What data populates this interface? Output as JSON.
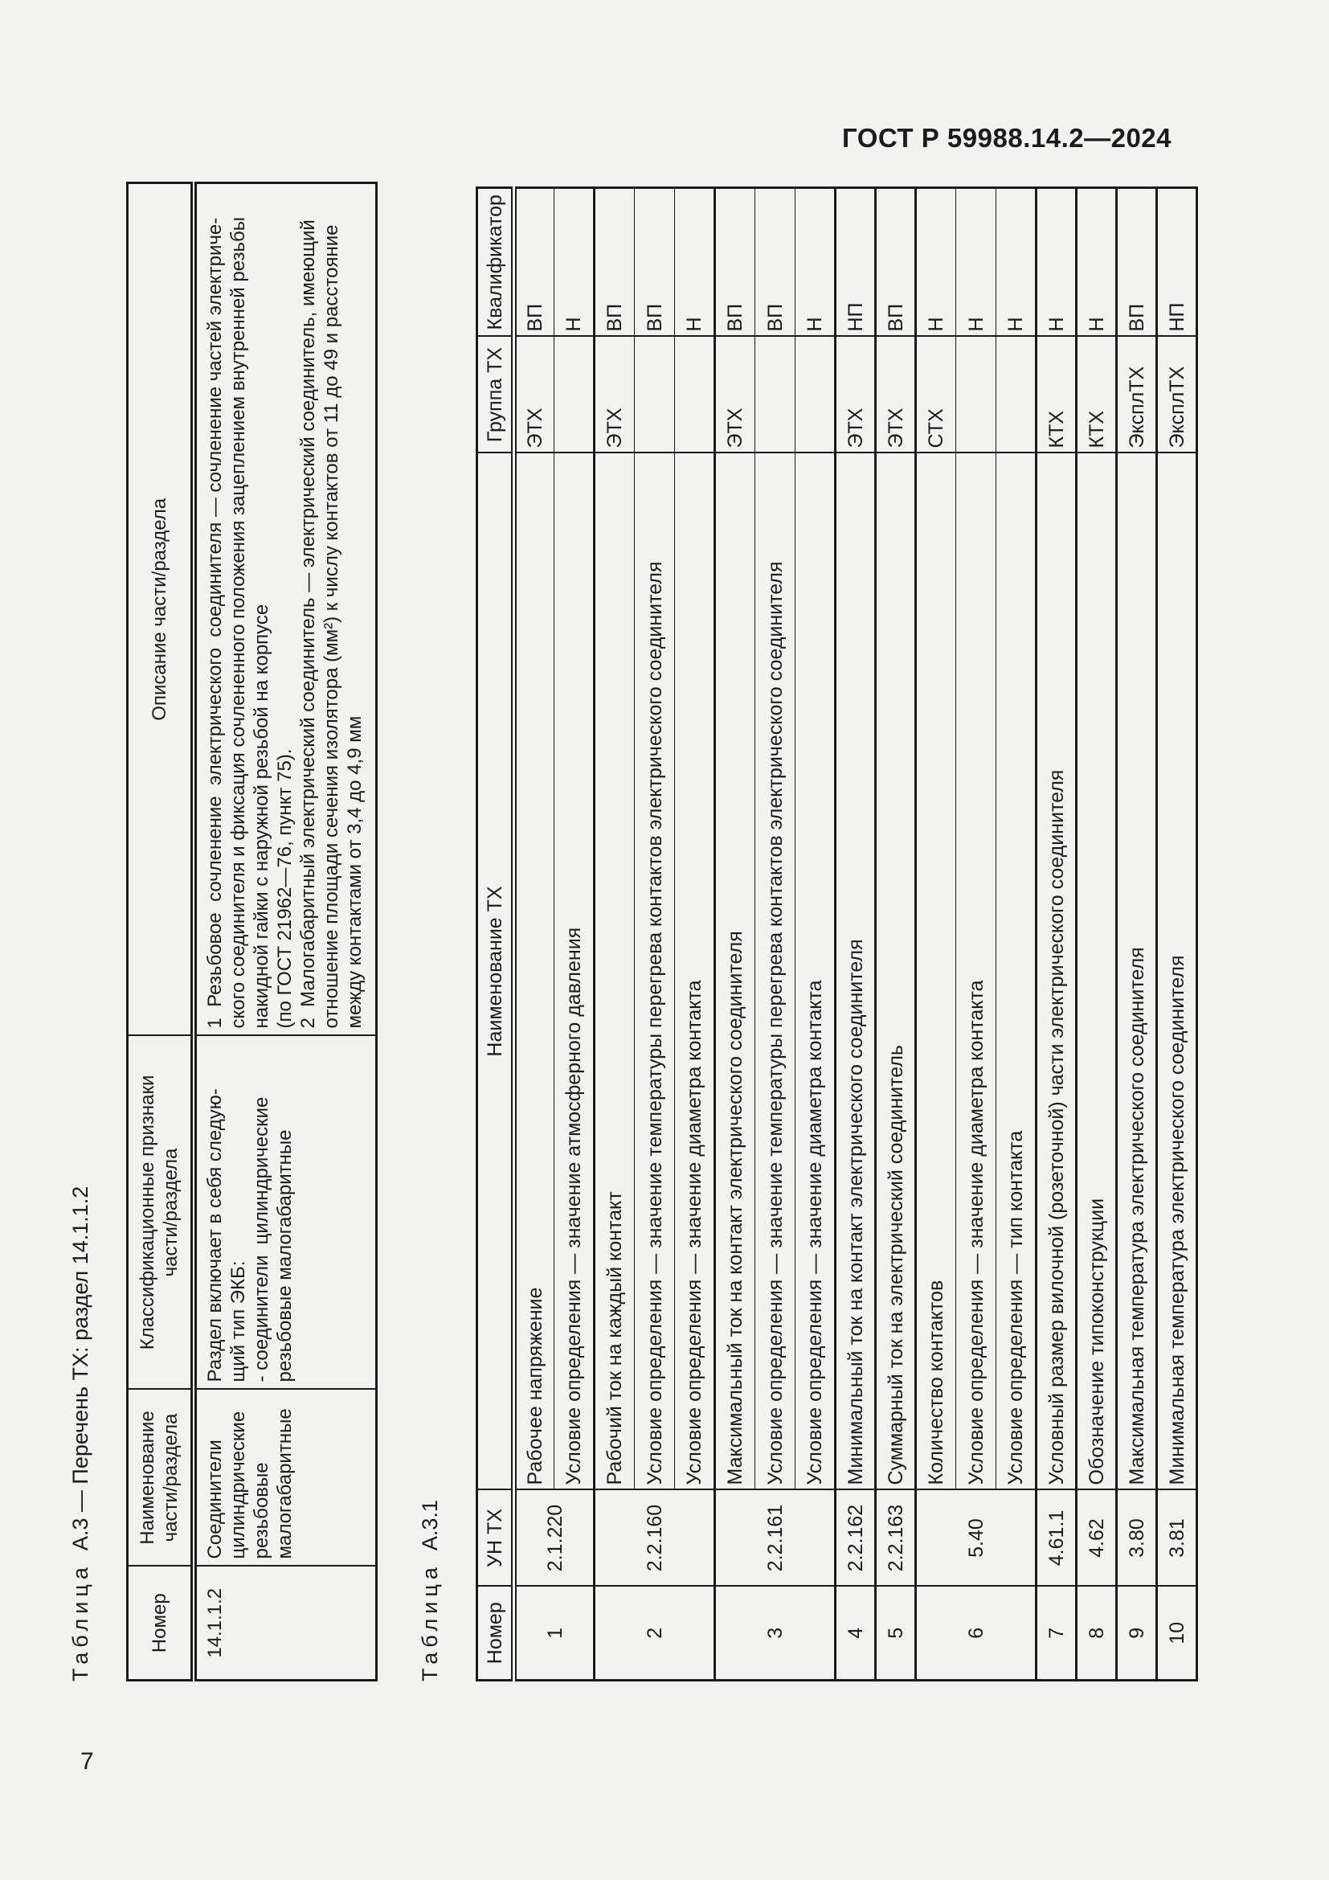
{
  "page": {
    "header": "ГОСТ Р 59988.14.2—2024",
    "number": "7"
  },
  "table_a3": {
    "title_word": "Таблица",
    "title_rest": "А.3 — Перечень ТХ: раздел 14.1.1.2",
    "columns": [
      "Номер",
      "Наименование\nчасти/раздела",
      "Классификационные признаки\nчасти/раздела",
      "Описание части/раздела"
    ],
    "row": {
      "number": "14.1.1.2",
      "name": "Соединители цилиндрические резьбовые малогабаритные",
      "features": "Раздел включает в себя следую-\nщий тип ЭКБ:\n- соединители  цилиндрические\nрезьбовые малогабаритные",
      "description": "1  Резьбовое  сочленение  электрического  соединителя — сочленение частей электриче-\nского соединителя и фиксация сочлененного положения зацеплением внутренней резьбы\nнакидной гайки с наружной резьбой на корпусе\n(по ГОСТ 21962—76, пункт 75).\n2  Малогабаритный электрический соединитель — электрический соединитель, имеющий\nотношение площади сечения изолятора (мм²) к числу контактов от 11 до 49 и расстояние\nмежду контактами от 3,4 до 4,9 мм"
    }
  },
  "table_a31": {
    "title_word": "Таблица",
    "title_rest": "А.3.1",
    "columns": [
      "Номер",
      "УН ТХ",
      "Наименование ТХ",
      "Группа ТХ",
      "Квалификатор"
    ],
    "rows": [
      {
        "num": "1",
        "un": "2.1.220",
        "items": [
          {
            "name": "Рабочее напряжение",
            "group": "ЭТХ",
            "qual": "ВП"
          },
          {
            "name": "Условие определения — значение атмосферного давления",
            "group": "",
            "qual": "Н"
          }
        ]
      },
      {
        "num": "2",
        "un": "2.2.160",
        "items": [
          {
            "name": "Рабочий ток на каждый контакт",
            "group": "ЭТХ",
            "qual": "ВП"
          },
          {
            "name": "Условие определения — значение температуры перегрева контактов электрического соединителя",
            "group": "",
            "qual": "ВП"
          },
          {
            "name": "Условие определения — значение диаметра контакта",
            "group": "",
            "qual": "Н"
          }
        ]
      },
      {
        "num": "3",
        "un": "2.2.161",
        "items": [
          {
            "name": "Максимальный ток на контакт электрического соединителя",
            "group": "ЭТХ",
            "qual": "ВП"
          },
          {
            "name": "Условие определения — значение температуры перегрева контактов электрического соединителя",
            "group": "",
            "qual": "ВП"
          },
          {
            "name": "Условие определения — значение диаметра контакта",
            "group": "",
            "qual": "Н"
          }
        ]
      },
      {
        "num": "4",
        "un": "2.2.162",
        "items": [
          {
            "name": "Минимальный ток на контакт электрического соединителя",
            "group": "ЭТХ",
            "qual": "НП"
          }
        ]
      },
      {
        "num": "5",
        "un": "2.2.163",
        "items": [
          {
            "name": "Суммарный ток на электрический соединитель",
            "group": "ЭТХ",
            "qual": "ВП"
          }
        ]
      },
      {
        "num": "6",
        "un": "5.40",
        "items": [
          {
            "name": "Количество контактов",
            "group": "СТХ",
            "qual": "Н"
          },
          {
            "name": "Условие определения — значение диаметра контакта",
            "group": "",
            "qual": "Н"
          },
          {
            "name": "Условие определения — тип контакта",
            "group": "",
            "qual": "Н"
          }
        ]
      },
      {
        "num": "7",
        "un": "4.61.1",
        "items": [
          {
            "name": "Условный размер вилочной (розеточной) части электрического соединителя",
            "group": "КТХ",
            "qual": "Н"
          }
        ]
      },
      {
        "num": "8",
        "un": "4.62",
        "items": [
          {
            "name": "Обозначение типоконструкции",
            "group": "КТХ",
            "qual": "Н"
          }
        ]
      },
      {
        "num": "9",
        "un": "3.80",
        "items": [
          {
            "name": "Максимальная температура электрического соединителя",
            "group": "ЭксплТХ",
            "qual": "ВП"
          }
        ]
      },
      {
        "num": "10",
        "un": "3.81",
        "items": [
          {
            "name": "Минимальная температура электрического соединителя",
            "group": "ЭксплТХ",
            "qual": "НП"
          }
        ]
      }
    ]
  }
}
